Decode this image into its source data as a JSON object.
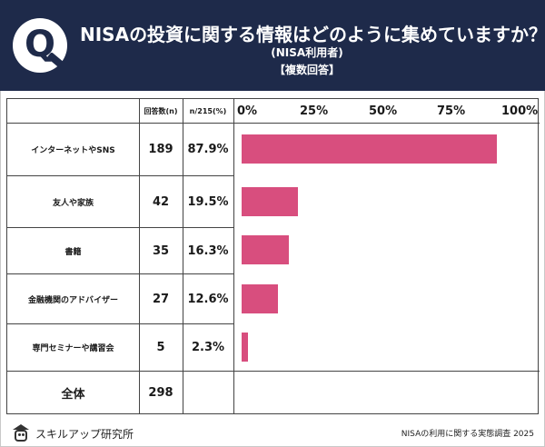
{
  "header": {
    "q_letter": "Q",
    "title": "NISAの投資に関する情報はどのように集めていますか？",
    "subtitle1": "(NISA利用者)",
    "subtitle2": "【複数回答】"
  },
  "table": {
    "col_count_header": "回答数(n)",
    "col_pct_header": "n/215(%)",
    "axis_ticks": [
      "0%",
      "25%",
      "50%",
      "75%",
      "100%"
    ],
    "total_label": "全体",
    "total_value": "298",
    "rows": [
      {
        "label": "インターネットやSNS",
        "count": "189",
        "pct": "87.9%"
      },
      {
        "label": "友人や家族",
        "count": "42",
        "pct": "19.5%"
      },
      {
        "label": "書籍",
        "count": "35",
        "pct": "16.3%"
      },
      {
        "label": "金融機関のアドバイザー",
        "count": "27",
        "pct": "12.6%"
      },
      {
        "label": "専門セミナーや講習会",
        "count": "5",
        "pct": "2.3%"
      }
    ]
  },
  "chart_data": {
    "type": "bar",
    "orientation": "horizontal",
    "categories": [
      "インターネットやSNS",
      "友人や家族",
      "書籍",
      "金融機関のアドバイザー",
      "専門セミナーや講習会"
    ],
    "values": [
      87.9,
      19.5,
      16.3,
      12.6,
      2.3
    ],
    "xlim": [
      0,
      100
    ],
    "tick_labels": [
      "0%",
      "25%",
      "50%",
      "75%",
      "100%"
    ],
    "grid": false,
    "bar_color": "#d84e7e"
  },
  "colors": {
    "header_bg": "#1e2a4a",
    "bar": "#d84e7e"
  },
  "footer": {
    "logo_icon": "owl-graduation-cap-icon",
    "brand": "スキルアップ研究所",
    "caption": "NISAの利用に関する実態調査 2025"
  }
}
